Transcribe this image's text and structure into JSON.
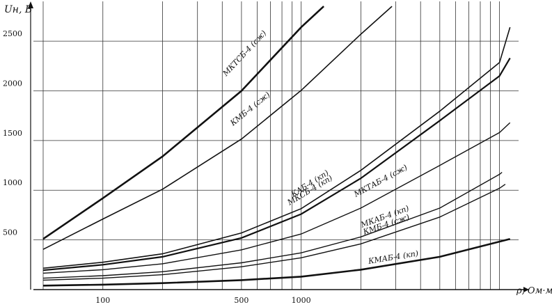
{
  "chart_data": {
    "type": "line",
    "ylabel": "Uн, В",
    "xlabel": "ρ, Ом·м",
    "log_x": true,
    "grid": true,
    "color": "#111111",
    "xlim": [
      50,
      11700
    ],
    "ylim": [
      0,
      2900
    ],
    "xticks": [
      100,
      500,
      1000
    ],
    "xgrid": [
      50,
      100,
      200,
      300,
      400,
      500,
      600,
      700,
      800,
      900,
      1000,
      2000,
      3000,
      4000,
      5000,
      6000,
      7000,
      8000,
      9000,
      10000
    ],
    "yticks": [
      500,
      1000,
      1500,
      2000,
      2500
    ],
    "series": [
      {
        "name": "МКТСБ-4 (сж)",
        "x": [
          50,
          100,
          200,
          500,
          1000,
          1300
        ],
        "values": [
          510,
          920,
          1340,
          2000,
          2640,
          2850
        ]
      },
      {
        "name": "КМБ-4 (сж)",
        "x": [
          50,
          100,
          200,
          500,
          1000,
          2000,
          2870
        ],
        "values": [
          405,
          710,
          1010,
          1515,
          2005,
          2570,
          2850
        ]
      },
      {
        "name": "КАБ-4 (кп)",
        "x": [
          50,
          100,
          200,
          500,
          1000,
          2000,
          5000,
          10000,
          11300
        ],
        "values": [
          215,
          275,
          360,
          570,
          815,
          1200,
          1795,
          2285,
          2640
        ]
      },
      {
        "name": "МКСБ-4 (кп)",
        "x": [
          50,
          100,
          200,
          500,
          1000,
          2000,
          5000,
          10000,
          11300
        ],
        "values": [
          195,
          250,
          330,
          520,
          760,
          1120,
          1700,
          2150,
          2330
        ]
      },
      {
        "name": "МКТАБ-4 (сж)",
        "x": [
          50,
          100,
          200,
          500,
          1000,
          2000,
          5000,
          10000,
          11300
        ],
        "values": [
          165,
          200,
          260,
          400,
          560,
          820,
          1250,
          1580,
          1680
        ]
      },
      {
        "name": "МКАБ-4 (кп)",
        "x": [
          50,
          100,
          200,
          500,
          1000,
          2000,
          5000,
          10000,
          10300
        ],
        "values": [
          115,
          140,
          180,
          270,
          370,
          530,
          820,
          1160,
          1180
        ]
      },
      {
        "name": "КМБ-4 (сж)",
        "x": [
          50,
          100,
          200,
          500,
          1000,
          2000,
          5000,
          10000,
          10700
        ],
        "values": [
          95,
          115,
          150,
          230,
          320,
          460,
          730,
          1020,
          1060
        ]
      },
      {
        "name": "КМАБ-4 (кп)",
        "x": [
          50,
          100,
          200,
          500,
          1000,
          2000,
          5000,
          11300
        ],
        "values": [
          40,
          50,
          65,
          95,
          130,
          200,
          330,
          510
        ]
      }
    ]
  }
}
